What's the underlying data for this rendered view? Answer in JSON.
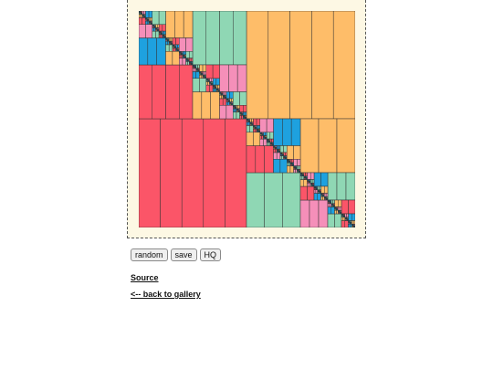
{
  "controls": {
    "random_label": "random",
    "save_label": "save",
    "hq_label": "HQ"
  },
  "links": {
    "source_label": "Source",
    "back_label": "<-- back to gallery"
  },
  "palette": {
    "red": "#fb5568",
    "orange": "#febd69",
    "teal": "#8fd7b4",
    "blue": "#1ea1df",
    "pink": "#f58fb9",
    "dark": "#1f4b5a",
    "background": "#fdf8e4",
    "stroke": "#333333"
  }
}
